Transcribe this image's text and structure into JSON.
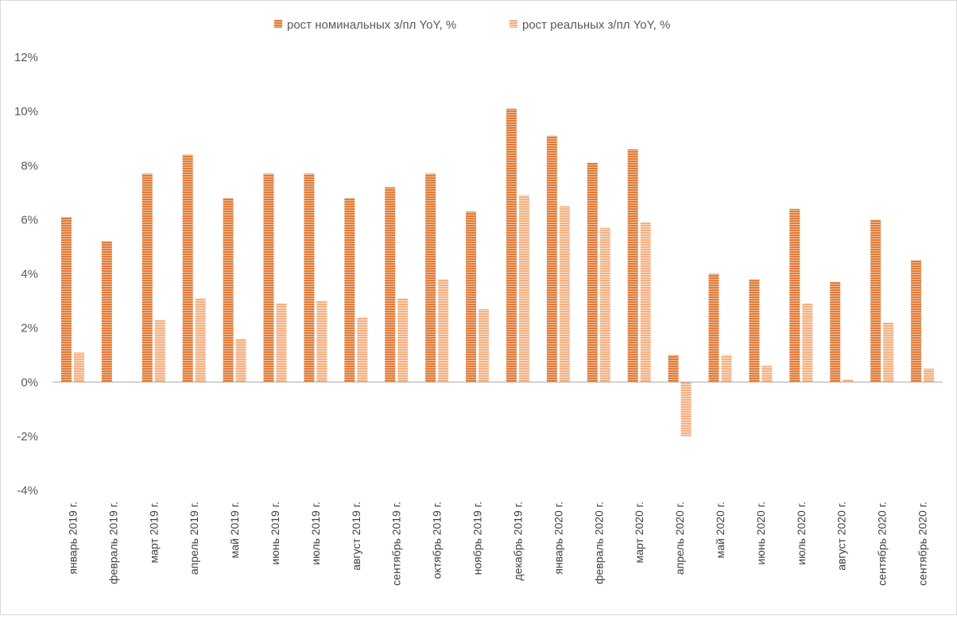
{
  "chart_data": {
    "type": "bar",
    "title": "",
    "xlabel": "",
    "ylabel": "",
    "ylim": [
      -4,
      12
    ],
    "ytick_step": 2,
    "y_unit": "%",
    "grid": false,
    "legend_position": "top",
    "categories": [
      "январь 2019 г.",
      "февраль 2019 г.",
      "март 2019 г.",
      "апрель 2019 г.",
      "май 2019 г.",
      "июнь 2019 г.",
      "июль 2019 г.",
      "август 2019 г.",
      "сентябрь 2019 г.",
      "октябрь 2019 г.",
      "ноябрь 2019 г.",
      "декабрь 2019 г.",
      "январь 2020 г.",
      "февраль 2020 г.",
      "март 2020 г.",
      "апрель 2020 г.",
      "май 2020 г.",
      "июнь 2020 г.",
      "июль 2020 г.",
      "август 2020 г.",
      "сентябрь 2020 г.",
      "сентябрь 2020 г."
    ],
    "series": [
      {
        "name": "рост номинальных з/пл YoY, %",
        "color": "#E07B39",
        "values": [
          6.1,
          5.2,
          7.7,
          8.4,
          6.8,
          7.7,
          7.7,
          6.8,
          7.2,
          7.7,
          6.3,
          10.1,
          9.1,
          8.1,
          8.6,
          1.0,
          4.0,
          3.8,
          6.4,
          3.7,
          6.0,
          4.5
        ]
      },
      {
        "name": "рост реальных з/пл YoY, %",
        "color": "#F4B183",
        "values": [
          1.1,
          0.0,
          2.3,
          3.1,
          1.6,
          2.9,
          3.0,
          2.4,
          3.1,
          3.8,
          2.7,
          6.9,
          6.5,
          5.7,
          5.9,
          -2.0,
          1.0,
          0.6,
          2.9,
          0.1,
          2.2,
          0.5
        ]
      }
    ]
  }
}
